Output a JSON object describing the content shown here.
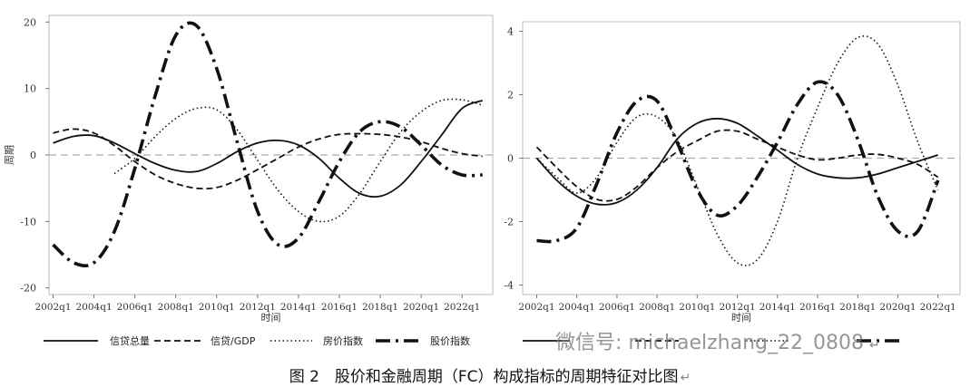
{
  "figure": {
    "caption": "图 2　股价和金融周期（FC）构成指标的周期特征对比图",
    "caption_mark": "↵",
    "watermark": "微信号: michaelzhang_22_0808",
    "watermark_mark": "↵"
  },
  "chart_data": [
    {
      "type": "line",
      "xlabel": "时间",
      "ylabel": "周期",
      "ylim": [
        -21,
        21
      ],
      "xlim": [
        2001.8,
        2023.5
      ],
      "yticks": [
        20,
        10,
        0,
        -10,
        -20
      ],
      "xticks": [
        "2002q1",
        "2004q1",
        "2006q1",
        "2008q1",
        "2010q1",
        "2012q1",
        "2014q1",
        "2016q1",
        "2018q1",
        "2020q1",
        "2022q1"
      ],
      "zero_line": true,
      "legend": "bottom",
      "series": [
        {
          "name": "信贷总量",
          "style": "solid",
          "x": [
            2002,
            2003,
            2004,
            2005,
            2006,
            2007,
            2008,
            2009,
            2010,
            2011,
            2012,
            2013,
            2014,
            2015,
            2016,
            2017,
            2018,
            2019,
            2020,
            2021,
            2022,
            2023
          ],
          "y": [
            1.8,
            2.8,
            2.9,
            1.8,
            0.2,
            -1.3,
            -2.3,
            -2.5,
            -1.3,
            0.5,
            1.8,
            2.2,
            1.5,
            -0.5,
            -3.5,
            -5.8,
            -6.2,
            -4.5,
            -1.0,
            3.0,
            7.0,
            8.2
          ]
        },
        {
          "name": "信贷/GDP",
          "style": "dashed",
          "x": [
            2002,
            2003,
            2004,
            2005,
            2006,
            2007,
            2008,
            2009,
            2010,
            2011,
            2012,
            2013,
            2014,
            2015,
            2016,
            2017,
            2018,
            2019,
            2020,
            2021,
            2022,
            2023
          ],
          "y": [
            3.3,
            3.9,
            3.3,
            1.4,
            -1.0,
            -3.0,
            -4.3,
            -5.0,
            -4.9,
            -3.8,
            -2.2,
            -0.5,
            1.2,
            2.4,
            3.1,
            3.2,
            3.1,
            2.7,
            2.0,
            1.0,
            0.2,
            -0.2
          ]
        },
        {
          "name": "房价指数",
          "style": "dotted",
          "x": [
            2005,
            2006,
            2007,
            2008,
            2009,
            2010,
            2011,
            2012,
            2013,
            2014,
            2015,
            2016,
            2017,
            2018,
            2019,
            2020,
            2021,
            2022,
            2023
          ],
          "y": [
            -2.8,
            -0.5,
            2.8,
            5.5,
            7.0,
            6.8,
            3.8,
            -0.8,
            -5.3,
            -8.5,
            -10.0,
            -9.2,
            -5.8,
            -1.0,
            3.5,
            6.5,
            8.2,
            8.3,
            7.5
          ]
        },
        {
          "name": "股价指数",
          "style": "dash-dot",
          "x": [
            2002,
            2003,
            2004,
            2005,
            2006,
            2007,
            2008,
            2009,
            2010,
            2011,
            2012,
            2013,
            2014,
            2015,
            2016,
            2017,
            2018,
            2019,
            2020,
            2021,
            2022,
            2023
          ],
          "y": [
            -13.5,
            -16.2,
            -16.2,
            -11.5,
            -2.0,
            9.0,
            18.0,
            19.5,
            13.0,
            2.0,
            -8.5,
            -13.5,
            -12.5,
            -7.0,
            -1.0,
            3.5,
            5.0,
            4.2,
            1.5,
            -1.5,
            -3.0,
            -3.0
          ]
        }
      ]
    },
    {
      "type": "line",
      "xlabel": "时间",
      "ylabel": "",
      "ylim": [
        -4.3,
        4.3
      ],
      "xlim": [
        2001.3,
        2023.1
      ],
      "yticks": [
        4,
        2,
        0,
        -2,
        -4
      ],
      "xticks": [
        "2002q1",
        "2004q1",
        "2006q1",
        "2008q1",
        "2010q1",
        "2012q1",
        "2014q1",
        "2016q1",
        "2018q1",
        "2020q1",
        "2022q1"
      ],
      "zero_line": true,
      "legend": "bottom",
      "series": [
        {
          "name": "",
          "style": "solid",
          "x": [
            2002,
            2003,
            2004,
            2005,
            2006,
            2007,
            2008,
            2009,
            2010,
            2011,
            2012,
            2013,
            2014,
            2015,
            2016,
            2017,
            2018,
            2019,
            2020,
            2021,
            2022
          ],
          "y": [
            0.0,
            -0.7,
            -1.2,
            -1.45,
            -1.4,
            -1.0,
            -0.3,
            0.6,
            1.1,
            1.25,
            1.1,
            0.7,
            0.25,
            -0.2,
            -0.5,
            -0.62,
            -0.62,
            -0.5,
            -0.3,
            -0.1,
            0.1
          ]
        },
        {
          "name": "",
          "style": "dashed",
          "x": [
            2002,
            2003,
            2004,
            2005,
            2006,
            2007,
            2008,
            2009,
            2010,
            2011,
            2012,
            2013,
            2014,
            2015,
            2016,
            2017,
            2018,
            2019,
            2020,
            2021,
            2022
          ],
          "y": [
            0.35,
            -0.3,
            -0.9,
            -1.3,
            -1.3,
            -0.9,
            -0.3,
            0.2,
            0.55,
            0.85,
            0.85,
            0.6,
            0.35,
            0.1,
            -0.05,
            0.0,
            0.1,
            0.12,
            0.0,
            -0.2,
            -0.6
          ]
        },
        {
          "name": "",
          "style": "dotted",
          "x": [
            2002,
            2003,
            2004,
            2005,
            2006,
            2007,
            2008,
            2009,
            2010,
            2011,
            2012,
            2013,
            2014,
            2015,
            2016,
            2017,
            2018,
            2019,
            2020,
            2021,
            2022
          ],
          "y": [
            0.0,
            -0.6,
            -1.1,
            -0.6,
            0.5,
            1.3,
            1.3,
            0.6,
            -0.9,
            -2.4,
            -3.3,
            -3.2,
            -2.0,
            0.0,
            1.6,
            3.0,
            3.8,
            3.6,
            2.3,
            0.5,
            -1.0
          ]
        },
        {
          "name": "",
          "style": "dash-dot",
          "x": [
            2002,
            2003,
            2004,
            2005,
            2006,
            2007,
            2008,
            2009,
            2010,
            2011,
            2012,
            2013,
            2014,
            2015,
            2016,
            2017,
            2018,
            2019,
            2020,
            2021,
            2022
          ],
          "y": [
            -2.6,
            -2.6,
            -2.2,
            -0.8,
            0.8,
            1.8,
            1.8,
            0.5,
            -1.0,
            -1.8,
            -1.5,
            -0.6,
            0.5,
            1.7,
            2.4,
            2.0,
            0.6,
            -1.2,
            -2.3,
            -2.3,
            -0.7
          ]
        }
      ]
    }
  ]
}
